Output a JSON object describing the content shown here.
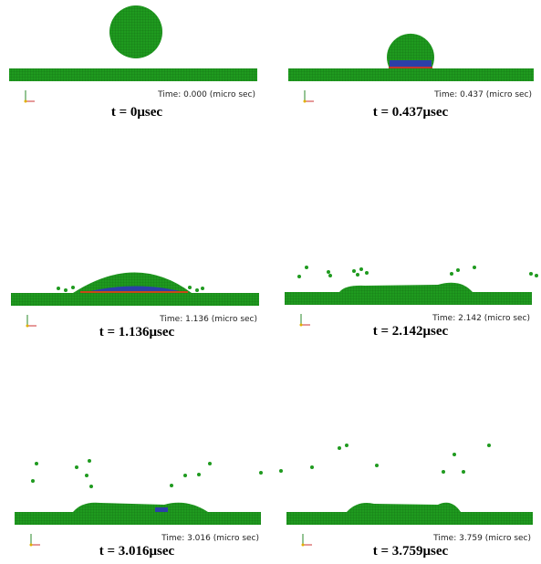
{
  "panels": [
    {
      "time_label": "Time: 0.000 (micro sec)",
      "caption": "t = 0μsec"
    },
    {
      "time_label": "Time: 0.437 (micro sec)",
      "caption": "t = 0.437μsec"
    },
    {
      "time_label": "Time: 1.136 (micro sec)",
      "caption": "t = 1.136μsec"
    },
    {
      "time_label": "Time: 2.142 (micro sec)",
      "caption": "t = 2.142μsec"
    },
    {
      "time_label": "Time: 3.016 (micro sec)",
      "caption": "t = 3.016μsec"
    },
    {
      "time_label": "Time: 3.759 (micro sec)",
      "caption": "t = 3.759μsec"
    }
  ]
}
